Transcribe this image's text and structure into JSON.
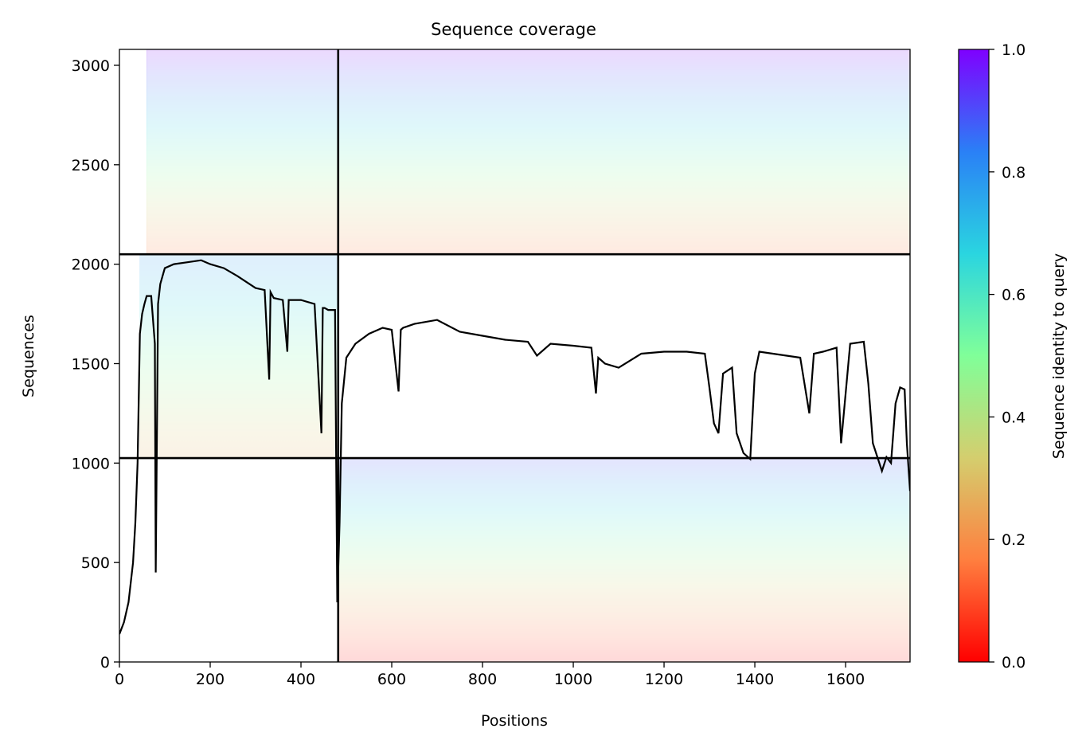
{
  "chart_data": {
    "type": "heatmap",
    "title": "Sequence coverage",
    "xlabel": "Positions",
    "ylabel": "Sequences",
    "xlim": [
      0,
      1742
    ],
    "ylim": [
      0,
      3080
    ],
    "xticks": [
      0,
      200,
      400,
      600,
      800,
      1000,
      1200,
      1400,
      1600
    ],
    "yticks": [
      0,
      500,
      1000,
      1500,
      2000,
      2500,
      3000
    ],
    "grid": false,
    "colorbar": {
      "label": "Sequence identity to query",
      "range": [
        0,
        1
      ],
      "ticks": [
        "0.0",
        "0.2",
        "0.4",
        "0.6",
        "0.8",
        "1.0"
      ],
      "colormap": [
        "#ff0000",
        "#ff7f3f",
        "#d4ce6e",
        "#80ff99",
        "#2ad5e0",
        "#2a80f6",
        "#7f00ff"
      ]
    },
    "block_dividers": {
      "x": [
        482
      ],
      "y": [
        1025,
        2050
      ]
    },
    "blocks": [
      {
        "name": "block-top-left",
        "x_range": [
          0,
          482
        ],
        "y_range": [
          2050,
          3080
        ],
        "covered_x_start": 60,
        "identity_bottom": 0.15,
        "identity_top": 1.0
      },
      {
        "name": "block-top-right",
        "x_range": [
          482,
          1742
        ],
        "y_range": [
          2050,
          3080
        ],
        "covered_x_start": 482,
        "identity_bottom": 0.15,
        "identity_top": 1.0
      },
      {
        "name": "block-middle-left",
        "x_range": [
          0,
          482
        ],
        "y_range": [
          1025,
          2050
        ],
        "covered_x_start": 45,
        "identity_bottom": 0.25,
        "identity_top": 0.8
      },
      {
        "name": "block-bottom-right",
        "x_range": [
          482,
          1742
        ],
        "y_range": [
          0,
          1025
        ],
        "covered_x_start": 482,
        "identity_bottom": 0.0,
        "identity_top": 0.9
      }
    ],
    "coverage_line": {
      "x": [
        0,
        10,
        20,
        30,
        35,
        40,
        45,
        50,
        55,
        60,
        70,
        78,
        80,
        85,
        90,
        100,
        120,
        150,
        180,
        200,
        230,
        260,
        300,
        320,
        330,
        333,
        340,
        360,
        370,
        373,
        378,
        400,
        430,
        445,
        448,
        452,
        460,
        475,
        480,
        485,
        490,
        500,
        520,
        550,
        580,
        600,
        615,
        620,
        625,
        650,
        700,
        750,
        800,
        850,
        900,
        920,
        950,
        1000,
        1040,
        1050,
        1055,
        1070,
        1100,
        1150,
        1200,
        1250,
        1290,
        1300,
        1310,
        1320,
        1330,
        1350,
        1360,
        1375,
        1390,
        1400,
        1410,
        1440,
        1470,
        1500,
        1520,
        1530,
        1550,
        1580,
        1590,
        1610,
        1640,
        1650,
        1660,
        1680,
        1690,
        1700,
        1710,
        1720,
        1730,
        1735,
        1742
      ],
      "y": [
        140,
        200,
        300,
        500,
        700,
        1000,
        1650,
        1750,
        1800,
        1840,
        1840,
        1600,
        450,
        1800,
        1900,
        1980,
        2000,
        2010,
        2020,
        2000,
        1980,
        1940,
        1880,
        1870,
        1420,
        1860,
        1830,
        1820,
        1560,
        1820,
        1820,
        1820,
        1800,
        1150,
        1780,
        1780,
        1770,
        1770,
        300,
        700,
        1300,
        1530,
        1600,
        1650,
        1680,
        1670,
        1360,
        1670,
        1680,
        1700,
        1720,
        1660,
        1640,
        1620,
        1610,
        1540,
        1600,
        1590,
        1580,
        1350,
        1530,
        1500,
        1480,
        1550,
        1560,
        1560,
        1550,
        1380,
        1200,
        1150,
        1450,
        1480,
        1150,
        1050,
        1020,
        1450,
        1560,
        1550,
        1540,
        1530,
        1250,
        1550,
        1560,
        1580,
        1100,
        1600,
        1610,
        1400,
        1100,
        960,
        1030,
        1000,
        1300,
        1380,
        1370,
        1100,
        860
      ]
    }
  }
}
